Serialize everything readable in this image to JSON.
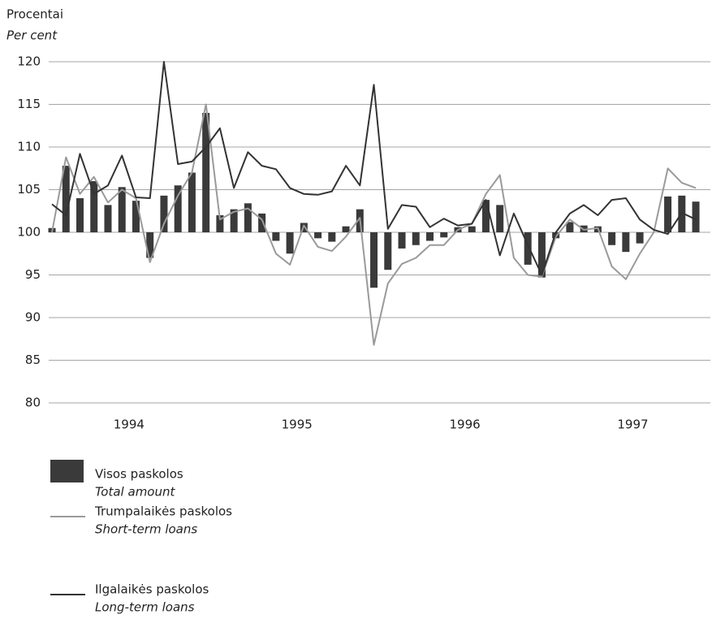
{
  "chart_data": {
    "type": "bar_line",
    "y_label": "Procentai",
    "y_label_en": "Per cent",
    "categories": [
      null,
      null,
      null,
      null,
      null,
      "1994",
      null,
      null,
      null,
      null,
      null,
      null,
      null,
      null,
      null,
      null,
      null,
      "1995",
      null,
      null,
      null,
      null,
      null,
      null,
      null,
      null,
      null,
      null,
      null,
      "1996",
      null,
      null,
      null,
      null,
      null,
      null,
      null,
      null,
      null,
      null,
      null,
      "1997",
      null,
      null,
      null,
      null,
      null
    ],
    "ylim": [
      80,
      120
    ],
    "yticks": [
      80,
      85,
      90,
      95,
      100,
      105,
      110,
      115,
      120
    ],
    "grid": true,
    "bar_base": 100,
    "series": [
      {
        "name": "Visos paskolos",
        "name_en": "Total amount",
        "kind": "bar",
        "color": "#3a3a3a",
        "values": [
          100.5,
          107.8,
          104,
          106,
          103.2,
          105.3,
          103.7,
          97,
          104.3,
          105.5,
          107,
          114,
          102,
          102.7,
          103.4,
          102.2,
          99,
          97.5,
          101.1,
          99.3,
          98.9,
          100.7,
          102.7,
          93.5,
          95.6,
          98.1,
          98.5,
          99,
          99.4,
          100.6,
          100.7,
          103.8,
          103.2,
          100,
          96.2,
          94.7,
          99.3,
          101.2,
          100.8,
          100.7,
          98.5,
          97.7,
          98.7,
          100,
          104.2,
          104.3,
          103.6
        ]
      },
      {
        "name": "Trumpalaikės paskolos",
        "name_en": "Short-term loans",
        "kind": "line",
        "color": "#9a9a9a",
        "values": [
          100,
          108.8,
          104.5,
          106.5,
          103.5,
          105,
          104,
          96.5,
          101,
          104.3,
          107,
          115,
          101.5,
          102.4,
          102.8,
          101.5,
          97.5,
          96.2,
          100.8,
          98.3,
          97.8,
          99.5,
          101.7,
          86.8,
          94,
          96.3,
          97,
          98.5,
          98.5,
          100.3,
          101,
          104.5,
          106.7,
          97,
          95,
          94.8,
          99.5,
          101.5,
          100.3,
          100.5,
          96,
          94.5,
          97.5,
          100,
          107.5,
          105.8,
          105.2
        ]
      },
      {
        "name": "Ilgalaikės paskolos",
        "name_en": "Long-term loans",
        "kind": "line",
        "color": "#333333",
        "values": [
          103.3,
          102,
          109.2,
          104.5,
          105.5,
          109,
          104.1,
          104,
          120,
          108,
          108.3,
          110,
          112.2,
          105.2,
          109.4,
          107.8,
          107.4,
          105.2,
          104.5,
          104.4,
          104.8,
          107.8,
          105.5,
          117.3,
          100.4,
          103.2,
          103,
          100.6,
          101.6,
          100.8,
          101,
          103.8,
          97.3,
          102.2,
          98.5,
          95,
          100,
          102.2,
          103.2,
          102,
          103.8,
          104,
          101.5,
          100.3,
          99.8,
          102.3,
          101.5
        ]
      }
    ]
  }
}
